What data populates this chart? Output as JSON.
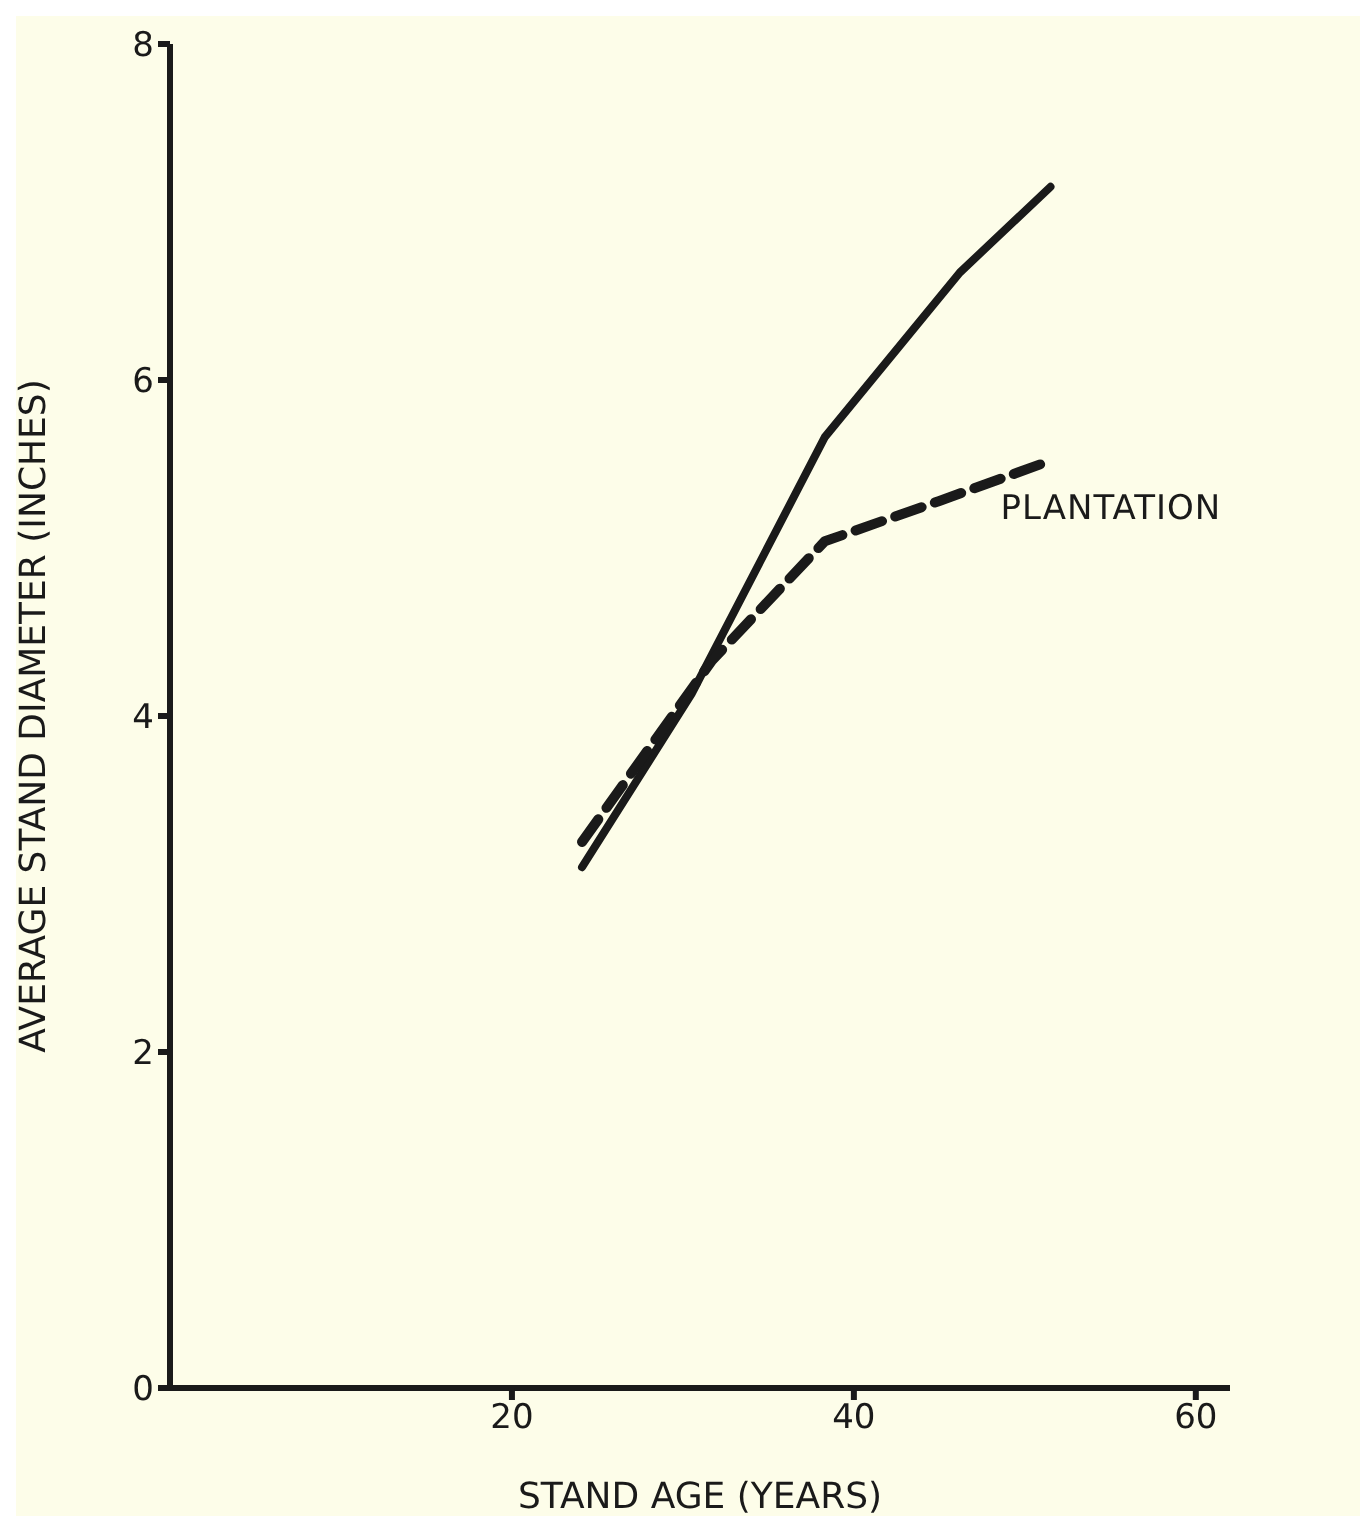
{
  "chart_data": {
    "type": "line",
    "xlabel": "STAND AGE (YEARS)",
    "ylabel": "AVERAGE STAND DIAMETER (INCHES)",
    "xlim": [
      0,
      62
    ],
    "xticks": [
      20,
      40,
      60
    ],
    "ylim": [
      0,
      8
    ],
    "yticks": [
      0,
      2,
      4,
      6,
      8
    ],
    "marker": "none",
    "series": [
      {
        "color": "#1a1a1a",
        "line_style": "solid",
        "x": [
          24.1,
          30.5,
          38.3,
          46.2,
          51.5
        ],
        "values": [
          3.1,
          4.13,
          5.66,
          6.64,
          7.15
        ]
      },
      {
        "name": "PLANTATION",
        "color": "#1a1a1a",
        "line_style": "dashed",
        "x": [
          24.1,
          31.7,
          38.3,
          45,
          51.5
        ],
        "values": [
          3.25,
          4.33,
          5.04,
          5.28,
          5.52
        ]
      }
    ]
  }
}
